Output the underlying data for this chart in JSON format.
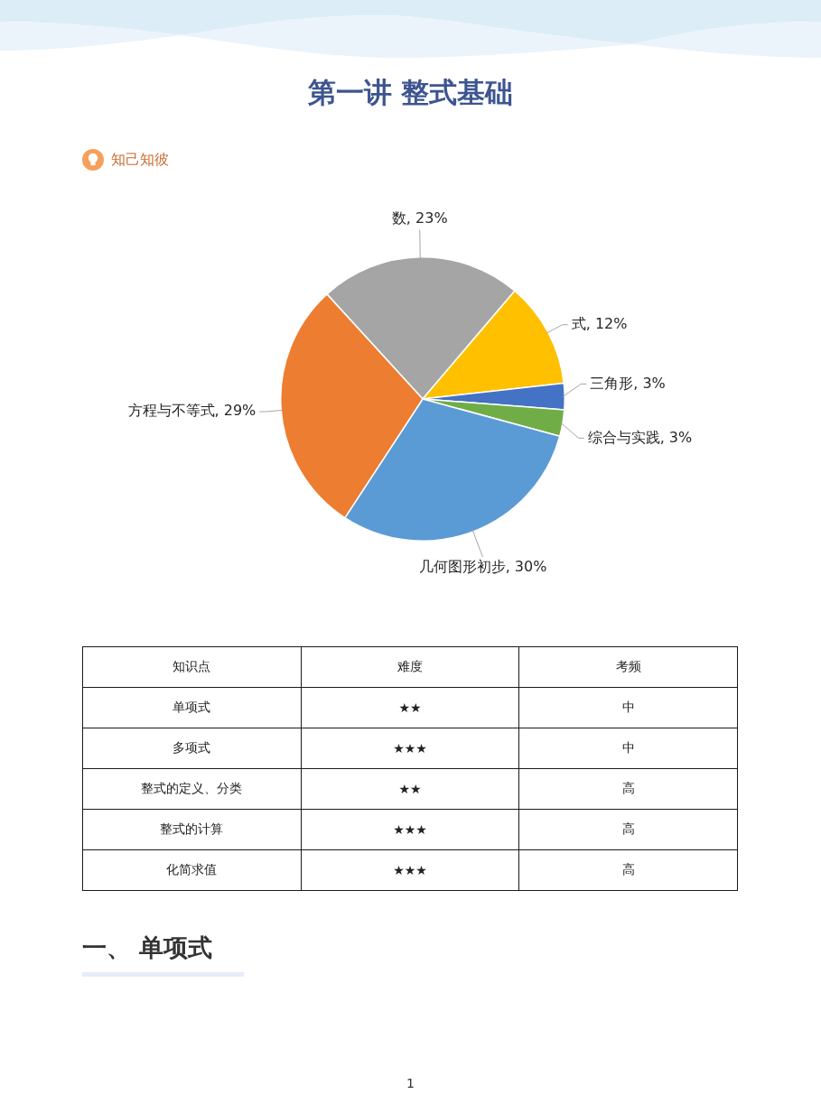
{
  "chart_data": [
    {
      "type": "pie",
      "title": "第一讲 整式基础",
      "subtitle": "知己知彼",
      "categories": [
        "数",
        "式",
        "三角形",
        "综合与实践",
        "几何图形初步",
        "方程与不等式"
      ],
      "values": [
        23,
        12,
        3,
        3,
        30,
        29
      ],
      "colors": [
        "#a5a5a5",
        "#ffc000",
        "#4472c4",
        "#70ad47",
        "#5b9bd5",
        "#ed7d31"
      ],
      "value_labels": [
        "23%",
        "12%",
        "3%",
        "3%",
        "30%",
        "29%"
      ]
    },
    {
      "type": "other",
      "cell_labels": [
        [
          "知识点",
          "难度",
          "考频"
        ],
        [
          "单项式",
          "★★",
          "中"
        ],
        [
          "多项式",
          "★★★",
          "中"
        ],
        [
          "整式的定义、分类",
          "★★",
          "高"
        ],
        [
          "整式的计算",
          "★★★",
          "高"
        ],
        [
          "化简求值",
          "★★★",
          "高"
        ]
      ],
      "annotations": [
        "一、 单项式",
        "1"
      ]
    }
  ]
}
